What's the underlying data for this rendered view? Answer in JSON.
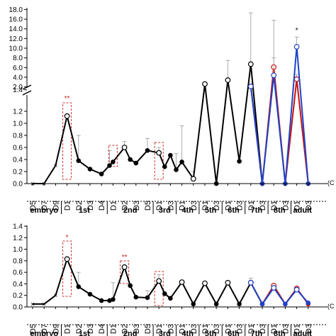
{
  "chart_data": [
    {
      "type": "line",
      "y_ticks_upper": [
        "2.0",
        "4.0",
        "6.0",
        "8.0",
        "10.0",
        "12.0",
        "14.0",
        "16.0",
        "18.0"
      ],
      "y_ticks_lower": [
        "0.0",
        "0.2",
        "0.4",
        "0.6",
        "0.8",
        "1.0",
        "1.2",
        "1.4"
      ],
      "ylim_lower": [
        0,
        1.4
      ],
      "ylim_upper": [
        2,
        18
      ],
      "axis_break": true,
      "x_tick_labels": [
        "D5",
        "D7",
        "D9",
        "D1",
        "D2",
        "D3",
        "D4",
        "D1",
        "D2",
        "D3",
        "D5",
        "D1",
        "D3",
        "D1",
        "D3",
        "D1",
        "D3",
        "D1",
        "D3",
        "D1",
        "D3",
        "D1",
        "D3",
        "D1",
        "D3"
      ],
      "stage_labels": [
        "embryo",
        "1st",
        "2nd",
        "3rd",
        "4th",
        "5th",
        "6th",
        "7th",
        "8th",
        "adult"
      ],
      "right_partial_label": "(C",
      "series": [
        {
          "color": "#000000",
          "points": [
            [
              0,
              0.0,
              "x"
            ],
            [
              1,
              0.0,
              "x"
            ],
            [
              2,
              0.3,
              "x"
            ],
            [
              3,
              1.12,
              "o"
            ],
            [
              4,
              0.38,
              "f"
            ],
            [
              5,
              0.24,
              "f"
            ],
            [
              6,
              0.16,
              "f"
            ],
            [
              6.7,
              0.3,
              "f"
            ],
            [
              7,
              0.36,
              "f"
            ],
            [
              8,
              0.6,
              "o"
            ],
            [
              8.5,
              0.4,
              "f"
            ],
            [
              9,
              0.34,
              "f"
            ],
            [
              10,
              0.55,
              "f"
            ],
            [
              11,
              0.51,
              "o"
            ],
            [
              11.5,
              0.28,
              "f"
            ],
            [
              12,
              0.47,
              "f"
            ],
            [
              12.5,
              0.23,
              "f"
            ],
            [
              13,
              0.36,
              "f"
            ],
            [
              14,
              0.08,
              "o"
            ],
            [
              15,
              2.6,
              "o"
            ],
            [
              16,
              0.0,
              "f"
            ],
            [
              17,
              3.4,
              "o"
            ],
            [
              18,
              0.37,
              "f"
            ],
            [
              19,
              6.7,
              "o"
            ],
            [
              20,
              0.0,
              "f"
            ]
          ],
          "errors": [
            [
              4,
              0.8
            ],
            [
              6.7,
              0.55
            ],
            [
              8,
              0.7
            ],
            [
              10,
              0.75
            ],
            [
              11,
              0.6
            ],
            [
              12.5,
              0.5
            ],
            [
              13,
              0.96
            ],
            [
              14,
              0.2
            ],
            [
              15,
              3.0
            ],
            [
              17,
              7.5
            ],
            [
              19,
              17.3
            ]
          ]
        },
        {
          "color": "#cc1111",
          "points": [
            [
              19,
              2.1,
              "o"
            ],
            [
              20,
              0.0,
              "f"
            ],
            [
              21,
              6.1,
              "o"
            ],
            [
              22,
              0.0,
              "f"
            ],
            [
              23,
              3.6,
              "o"
            ],
            [
              24,
              0.0,
              "f"
            ]
          ],
          "errors": [
            [
              21,
              8.0
            ],
            [
              23,
              4.6
            ]
          ]
        },
        {
          "color": "#1f43c8",
          "points": [
            [
              19,
              2.1,
              "o"
            ],
            [
              20,
              0.0,
              "f"
            ],
            [
              21,
              4.4,
              "o"
            ],
            [
              22,
              0.0,
              "f"
            ],
            [
              23,
              10.3,
              "o"
            ],
            [
              24,
              0.0,
              "f"
            ]
          ],
          "errors": [
            [
              21,
              15.8
            ],
            [
              23,
              12.3
            ]
          ]
        }
      ],
      "significance": [
        {
          "x": 3,
          "label": "**"
        },
        {
          "x": 23,
          "label": "*"
        }
      ],
      "highlight_boxes": [
        [
          3,
          3
        ],
        [
          7,
          7
        ],
        [
          11,
          11
        ]
      ]
    },
    {
      "type": "line",
      "y_ticks": [
        "0.0",
        "0.2",
        "0.4",
        "0.6",
        "0.8",
        "1.0",
        "1.2",
        "1.4"
      ],
      "ylim": [
        0,
        1.4
      ],
      "x_tick_labels": [
        "D5",
        "D7",
        "D9",
        "D1",
        "D2",
        "D3",
        "D4",
        "D1",
        "D2",
        "D3",
        "D5",
        "D1",
        "D3",
        "D1",
        "D3",
        "D1",
        "D3",
        "D1",
        "D3",
        "D1",
        "D3",
        "D1",
        "D3",
        "D1",
        "D3"
      ],
      "stage_labels": [
        "embryo",
        "1st",
        "2nd",
        "3rd",
        "4th",
        "5th",
        "6th",
        "7th",
        "8th",
        "adult"
      ],
      "right_partial_label": "(C",
      "series": [
        {
          "color": "#000000",
          "points": [
            [
              0,
              0.05,
              "x"
            ],
            [
              1,
              0.05,
              "x"
            ],
            [
              2,
              0.2,
              "x"
            ],
            [
              3,
              0.83,
              "o"
            ],
            [
              4,
              0.35,
              "f"
            ],
            [
              5,
              0.22,
              "f"
            ],
            [
              6,
              0.11,
              "f"
            ],
            [
              6.7,
              0.11,
              "f"
            ],
            [
              7,
              0.13,
              "f"
            ],
            [
              8,
              0.69,
              "o"
            ],
            [
              8.5,
              0.37,
              "f"
            ],
            [
              9,
              0.17,
              "f"
            ],
            [
              10,
              0.16,
              "f"
            ],
            [
              11,
              0.45,
              "o"
            ],
            [
              11.5,
              0.23,
              "f"
            ],
            [
              12,
              0.15,
              "f"
            ],
            [
              13,
              0.43,
              "o"
            ],
            [
              14,
              0.05,
              "f"
            ],
            [
              15,
              0.41,
              "o"
            ],
            [
              16,
              0.05,
              "f"
            ],
            [
              17,
              0.42,
              "o"
            ],
            [
              18,
              0.05,
              "f"
            ],
            [
              19,
              0.42,
              "o"
            ],
            [
              20,
              0.05,
              "f"
            ]
          ],
          "errors": [
            [
              4,
              0.6
            ],
            [
              7,
              0.42
            ],
            [
              10,
              0.28
            ],
            [
              11,
              0.56
            ],
            [
              13,
              0.46
            ],
            [
              19,
              0.5
            ]
          ]
        },
        {
          "color": "#cc1111",
          "points": [
            [
              19,
              0.42,
              "o"
            ],
            [
              20,
              0.05,
              "f"
            ],
            [
              21,
              0.37,
              "o"
            ],
            [
              22,
              0.05,
              "f"
            ],
            [
              23,
              0.32,
              "o"
            ],
            [
              24,
              0.05,
              "f"
            ]
          ],
          "errors": [
            [
              21,
              0.4
            ]
          ]
        },
        {
          "color": "#1f43c8",
          "points": [
            [
              19,
              0.42,
              "o"
            ],
            [
              20,
              0.05,
              "f"
            ],
            [
              21,
              0.33,
              "o"
            ],
            [
              22,
              0.05,
              "f"
            ],
            [
              23,
              0.3,
              "o"
            ],
            [
              24,
              0.07,
              "f"
            ]
          ],
          "errors": [
            [
              23,
              0.33
            ]
          ]
        }
      ],
      "significance": [
        {
          "x": 3,
          "label": "*"
        },
        {
          "x": 8,
          "label": "**"
        }
      ],
      "highlight_boxes": [
        [
          3,
          3
        ],
        [
          8,
          8
        ],
        [
          11,
          11
        ]
      ]
    }
  ]
}
